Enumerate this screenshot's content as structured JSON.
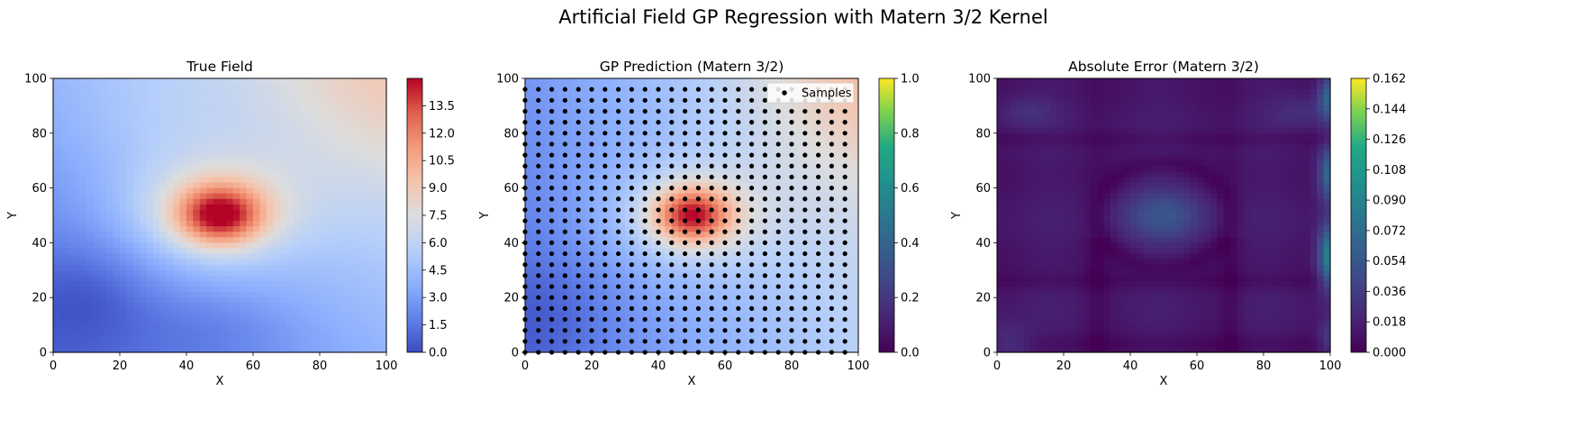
{
  "figure": {
    "suptitle": "Artificial Field GP Regression with Matern 3/2 Kernel"
  },
  "chart_data": [
    {
      "type": "heatmap",
      "title": "True Field",
      "xlabel": "X",
      "ylabel": "Y",
      "xlim": [
        0,
        100
      ],
      "ylim": [
        0,
        100
      ],
      "xticks": [
        "0",
        "20",
        "40",
        "60",
        "80",
        "100"
      ],
      "yticks": [
        "0",
        "20",
        "40",
        "60",
        "80",
        "100"
      ],
      "colormap": "coolwarm",
      "colorbar": {
        "range": [
          0.0,
          15.0
        ],
        "ticks": [
          0.0,
          1.5,
          3.0,
          4.5,
          6.0,
          7.5,
          9.0,
          10.5,
          12.0,
          13.5
        ],
        "tick_labels": [
          "0.0",
          "1.5",
          "3.0",
          "4.5",
          "6.0",
          "7.5",
          "9.0",
          "10.5",
          "12.0",
          "13.5"
        ]
      },
      "field_features": [
        {
          "kind": "peak",
          "x": 50,
          "y": 50,
          "value": 14.8
        },
        {
          "kind": "high",
          "x": 100,
          "y": 100,
          "value": 9.5
        },
        {
          "kind": "low",
          "x": 10,
          "y": 20,
          "value": 0.3
        },
        {
          "kind": "low",
          "x": 50,
          "y": 0,
          "value": 0.0
        }
      ]
    },
    {
      "type": "heatmap",
      "title": "GP Prediction (Matern 3/2)",
      "xlabel": "X",
      "ylabel": "Y",
      "xlim": [
        0,
        100
      ],
      "ylim": [
        0,
        100
      ],
      "xticks": [
        "0",
        "20",
        "40",
        "60",
        "80",
        "100"
      ],
      "yticks": [
        "0",
        "20",
        "40",
        "60",
        "80",
        "100"
      ],
      "colormap": "coolwarm",
      "colorbar": {
        "colormap": "viridis",
        "range": [
          0.0,
          1.0
        ],
        "ticks": [
          0.0,
          0.2,
          0.4,
          0.6,
          0.8,
          1.0
        ],
        "tick_labels": [
          "0.0",
          "0.2",
          "0.4",
          "0.6",
          "0.8",
          "1.0"
        ]
      },
      "legend": {
        "position": "top-right",
        "entries": [
          "Samples"
        ]
      },
      "samples": {
        "grid_start": 0,
        "grid_end": 96,
        "grid_step": 4,
        "x_count": 25,
        "y_count": 25
      }
    },
    {
      "type": "heatmap",
      "title": "Absolute Error (Matern 3/2)",
      "xlabel": "X",
      "ylabel": "Y",
      "xlim": [
        0,
        100
      ],
      "ylim": [
        0,
        100
      ],
      "xticks": [
        "0",
        "20",
        "40",
        "60",
        "80",
        "100"
      ],
      "yticks": [
        "0",
        "20",
        "40",
        "60",
        "80",
        "100"
      ],
      "colormap": "viridis",
      "colorbar": {
        "range": [
          0.0,
          0.162
        ],
        "ticks": [
          0.0,
          0.018,
          0.036,
          0.054,
          0.072,
          0.09,
          0.108,
          0.126,
          0.144,
          0.162
        ],
        "tick_labels": [
          "0.000",
          "0.018",
          "0.036",
          "0.054",
          "0.072",
          "0.090",
          "0.108",
          "0.126",
          "0.144",
          "0.162"
        ]
      },
      "field_features": [
        {
          "kind": "peak",
          "x": 50,
          "y": 50,
          "value": 0.085
        },
        {
          "kind": "edge-high",
          "x": 100,
          "y": 35,
          "value": 0.16
        },
        {
          "kind": "edge-high",
          "x": 100,
          "y": 65,
          "value": 0.12
        },
        {
          "kind": "edge-high",
          "x": 100,
          "y": 92,
          "value": 0.11
        }
      ]
    }
  ]
}
